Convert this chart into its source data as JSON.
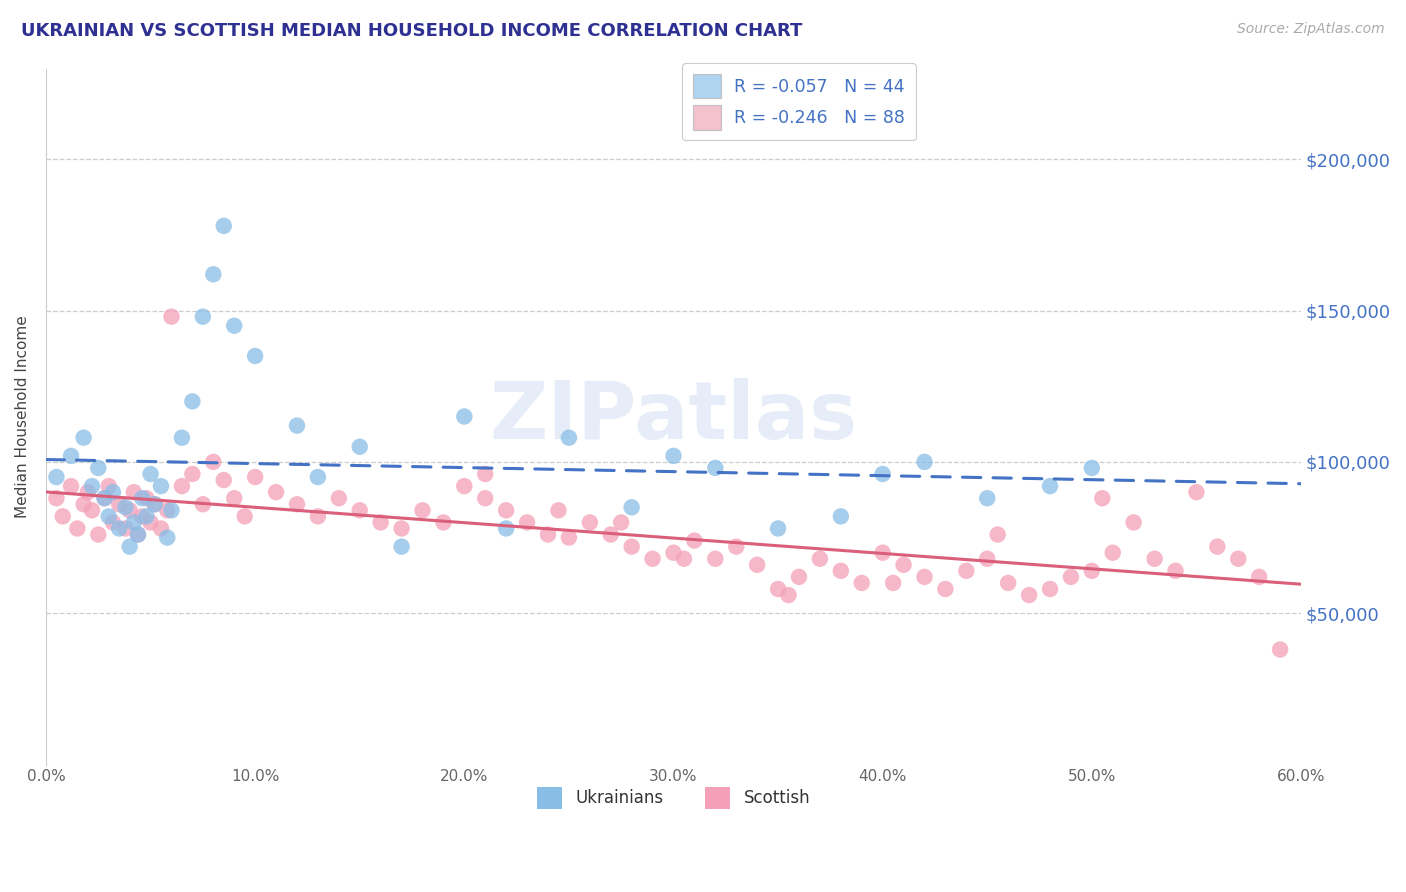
{
  "title": "UKRAINIAN VS SCOTTISH MEDIAN HOUSEHOLD INCOME CORRELATION CHART",
  "source": "Source: ZipAtlas.com",
  "ylabel": "Median Household Income",
  "x_min": 0.0,
  "x_max": 0.6,
  "y_min": 0,
  "y_max": 230000,
  "y_ticks": [
    50000,
    100000,
    150000,
    200000
  ],
  "y_tick_labels": [
    "$50,000",
    "$100,000",
    "$150,000",
    "$200,000"
  ],
  "x_ticks": [
    0.0,
    0.1,
    0.2,
    0.3,
    0.4,
    0.5,
    0.6
  ],
  "x_tick_labels": [
    "0.0%",
    "10.0%",
    "20.0%",
    "30.0%",
    "40.0%",
    "50.0%",
    "60.0%"
  ],
  "legend_r_labels": [
    "R = -0.057   N = 44",
    "R = -0.246   N = 88"
  ],
  "legend_bottom_labels": [
    "Ukrainians",
    "Scottish"
  ],
  "ukr_color": "#88bde6",
  "scot_color": "#f4a0b8",
  "ukr_line_color": "#4472c4",
  "scot_line_color": "#d95f7a",
  "legend_patch_ukr": "#aed4f0",
  "legend_patch_scot": "#f4c2cc",
  "watermark": "ZIPatlas",
  "background_color": "#ffffff",
  "grid_color": "#cccccc",
  "axis_label_color": "#4472c4",
  "title_color": "#2e3192",
  "ukr_x": [
    0.005,
    0.012,
    0.018,
    0.022,
    0.025,
    0.028,
    0.03,
    0.032,
    0.035,
    0.038,
    0.04,
    0.042,
    0.044,
    0.046,
    0.048,
    0.05,
    0.052,
    0.055,
    0.058,
    0.06,
    0.065,
    0.07,
    0.075,
    0.08,
    0.085,
    0.09,
    0.1,
    0.12,
    0.13,
    0.15,
    0.17,
    0.2,
    0.22,
    0.25,
    0.28,
    0.3,
    0.32,
    0.35,
    0.38,
    0.4,
    0.42,
    0.45,
    0.48,
    0.5
  ],
  "ukr_y": [
    95000,
    102000,
    108000,
    92000,
    98000,
    88000,
    82000,
    90000,
    78000,
    85000,
    72000,
    80000,
    76000,
    88000,
    82000,
    96000,
    86000,
    92000,
    75000,
    84000,
    108000,
    120000,
    148000,
    162000,
    178000,
    145000,
    135000,
    112000,
    95000,
    105000,
    72000,
    115000,
    78000,
    108000,
    85000,
    102000,
    98000,
    78000,
    82000,
    96000,
    100000,
    88000,
    92000,
    98000
  ],
  "scot_x": [
    0.005,
    0.008,
    0.012,
    0.015,
    0.018,
    0.02,
    0.022,
    0.025,
    0.028,
    0.03,
    0.032,
    0.035,
    0.038,
    0.04,
    0.042,
    0.044,
    0.046,
    0.048,
    0.05,
    0.052,
    0.055,
    0.058,
    0.06,
    0.065,
    0.07,
    0.075,
    0.08,
    0.085,
    0.09,
    0.095,
    0.1,
    0.11,
    0.12,
    0.13,
    0.14,
    0.15,
    0.16,
    0.17,
    0.18,
    0.19,
    0.2,
    0.21,
    0.22,
    0.23,
    0.24,
    0.25,
    0.26,
    0.27,
    0.28,
    0.29,
    0.3,
    0.31,
    0.32,
    0.33,
    0.34,
    0.35,
    0.36,
    0.37,
    0.38,
    0.39,
    0.4,
    0.41,
    0.42,
    0.43,
    0.44,
    0.45,
    0.46,
    0.47,
    0.48,
    0.49,
    0.5,
    0.51,
    0.52,
    0.53,
    0.54,
    0.55,
    0.56,
    0.57,
    0.58,
    0.59,
    0.21,
    0.245,
    0.275,
    0.305,
    0.355,
    0.405,
    0.455,
    0.505
  ],
  "scot_y": [
    88000,
    82000,
    92000,
    78000,
    86000,
    90000,
    84000,
    76000,
    88000,
    92000,
    80000,
    86000,
    78000,
    84000,
    90000,
    76000,
    82000,
    88000,
    80000,
    86000,
    78000,
    84000,
    148000,
    92000,
    96000,
    86000,
    100000,
    94000,
    88000,
    82000,
    95000,
    90000,
    86000,
    82000,
    88000,
    84000,
    80000,
    78000,
    84000,
    80000,
    92000,
    88000,
    84000,
    80000,
    76000,
    75000,
    80000,
    76000,
    72000,
    68000,
    70000,
    74000,
    68000,
    72000,
    66000,
    58000,
    62000,
    68000,
    64000,
    60000,
    70000,
    66000,
    62000,
    58000,
    64000,
    68000,
    60000,
    56000,
    58000,
    62000,
    64000,
    70000,
    80000,
    68000,
    64000,
    90000,
    72000,
    68000,
    62000,
    38000,
    96000,
    84000,
    80000,
    68000,
    56000,
    60000,
    76000,
    88000
  ]
}
